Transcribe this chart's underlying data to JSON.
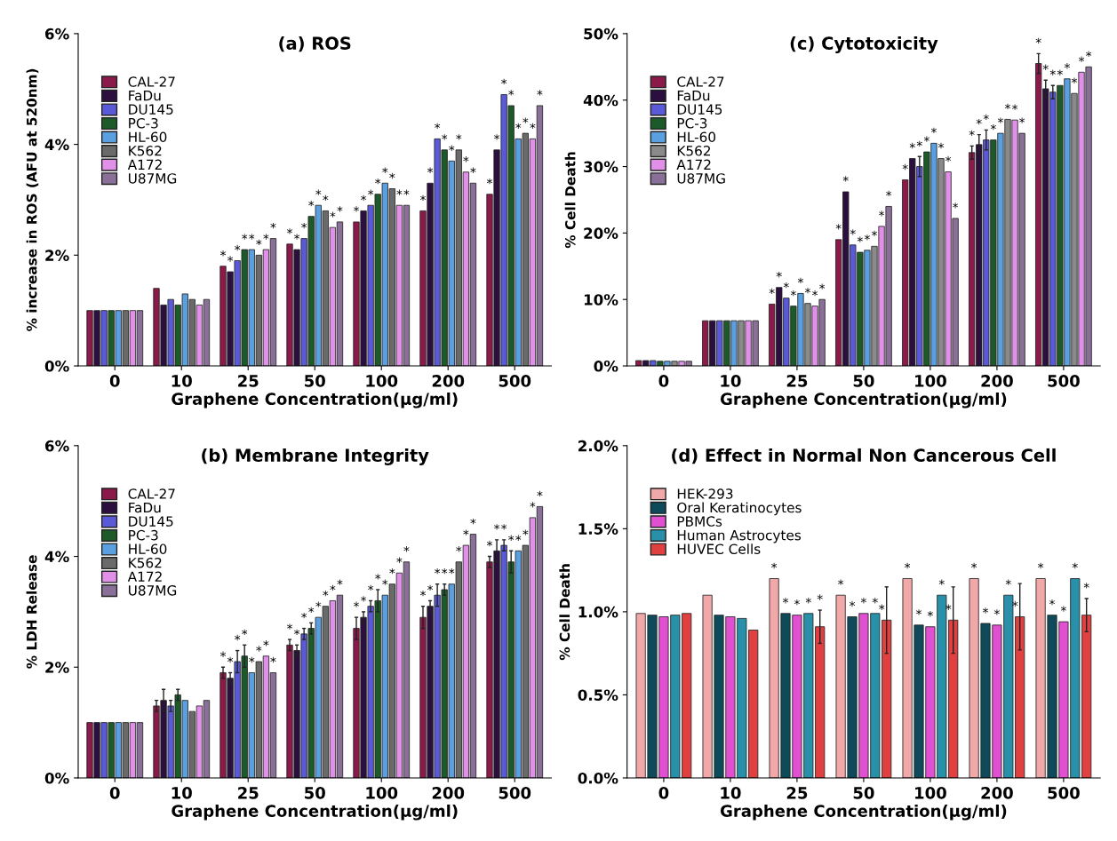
{
  "chart_data": [
    {
      "type": "bar",
      "title": "(a) ROS",
      "xlabel": "Graphene Concentration(μg/ml)",
      "ylabel": "% increase in ROS (AFU at 520nm)",
      "categories": [
        "0",
        "10",
        "25",
        "50",
        "100",
        "200",
        "500"
      ],
      "ylim": [
        0,
        6
      ],
      "yticks": [
        {
          "value": 0,
          "label": "0%"
        },
        {
          "value": 2,
          "label": "2%"
        },
        {
          "value": 4,
          "label": "4%"
        },
        {
          "value": 6,
          "label": "6%"
        }
      ],
      "legend": "top left",
      "grid": false,
      "series": [
        {
          "name": "CAL-27",
          "color": "#8b1a4a",
          "values": [
            1.0,
            1.4,
            1.8,
            2.2,
            2.6,
            2.8,
            3.1
          ],
          "value_labels": [
            null,
            null,
            "*",
            "*",
            "*",
            "*",
            "*"
          ]
        },
        {
          "name": "FaDu",
          "color": "#2a0f3f",
          "values": [
            1.0,
            1.1,
            1.7,
            2.1,
            2.8,
            3.3,
            3.9
          ],
          "value_labels": [
            null,
            null,
            "*",
            "*",
            "*",
            "*",
            "*"
          ]
        },
        {
          "name": "DU145",
          "color": "#5a5ad8",
          "values": [
            1.0,
            1.2,
            1.9,
            2.3,
            2.9,
            4.1,
            4.9
          ],
          "value_labels": [
            null,
            null,
            "*",
            "*",
            "*",
            "*",
            "*"
          ]
        },
        {
          "name": "PC-3",
          "color": "#1d5a2a",
          "values": [
            1.0,
            1.1,
            2.1,
            2.7,
            3.1,
            3.9,
            4.7
          ],
          "value_labels": [
            null,
            null,
            "*",
            "*",
            "*",
            "*",
            "*"
          ]
        },
        {
          "name": "HL-60",
          "color": "#5aa0e0",
          "values": [
            1.0,
            1.3,
            2.1,
            2.9,
            3.3,
            3.7,
            4.1
          ],
          "value_labels": [
            null,
            null,
            "*",
            "*",
            "*",
            "*",
            "*"
          ]
        },
        {
          "name": "K562",
          "color": "#6a6a6a",
          "values": [
            1.0,
            1.2,
            2.0,
            2.8,
            3.2,
            3.9,
            4.2
          ],
          "value_labels": [
            null,
            null,
            "*",
            "*",
            "*",
            "*",
            "*"
          ]
        },
        {
          "name": "A172",
          "color": "#e090e8",
          "values": [
            1.0,
            1.1,
            2.1,
            2.5,
            2.9,
            3.5,
            4.1
          ],
          "value_labels": [
            null,
            null,
            "*",
            "*",
            "*",
            "*",
            "*"
          ]
        },
        {
          "name": "U87MG",
          "color": "#8a7098",
          "values": [
            1.0,
            1.2,
            2.3,
            2.6,
            2.9,
            3.3,
            4.7
          ],
          "value_labels": [
            null,
            null,
            "*",
            "*",
            "*",
            "*",
            "*"
          ]
        }
      ]
    },
    {
      "type": "bar",
      "title": "(c) Cytotoxicity",
      "xlabel": "Graphene Concentration(μg/ml)",
      "ylabel": "% Cell Death",
      "categories": [
        "0",
        "10",
        "25",
        "50",
        "100",
        "200",
        "500"
      ],
      "ylim": [
        0,
        50
      ],
      "yticks": [
        {
          "value": 0,
          "label": "0%"
        },
        {
          "value": 10,
          "label": "10%"
        },
        {
          "value": 20,
          "label": "20%"
        },
        {
          "value": 30,
          "label": "30%"
        },
        {
          "value": 40,
          "label": "40%"
        },
        {
          "value": 50,
          "label": "50%"
        }
      ],
      "legend": "top left",
      "grid": false,
      "series": [
        {
          "name": "CAL-27",
          "color": "#8b1a4a",
          "values": [
            0.8,
            6.8,
            9.3,
            19.0,
            28.0,
            32.1,
            45.5
          ],
          "errors": [
            null,
            null,
            null,
            null,
            null,
            1.0,
            1.5
          ],
          "value_labels": [
            null,
            null,
            "*",
            "*",
            "*",
            "*",
            "*"
          ]
        },
        {
          "name": "FaDu",
          "color": "#2a0f3f",
          "values": [
            0.8,
            6.8,
            11.8,
            26.2,
            31.2,
            33.3,
            41.7
          ],
          "errors": [
            null,
            null,
            null,
            null,
            null,
            1.5,
            1.3
          ],
          "value_labels": [
            null,
            null,
            "*",
            "*",
            "*",
            "*",
            "*"
          ]
        },
        {
          "name": "DU145",
          "color": "#5a5ad8",
          "values": [
            0.8,
            6.8,
            10.2,
            18.2,
            30.0,
            34.0,
            41.2
          ],
          "errors": [
            null,
            null,
            null,
            null,
            1.5,
            1.5,
            1.0
          ],
          "value_labels": [
            null,
            null,
            "*",
            "*",
            "*",
            "*",
            "*"
          ]
        },
        {
          "name": "PC-3",
          "color": "#1d5a2a",
          "values": [
            0.7,
            6.8,
            9.0,
            17.1,
            32.2,
            34.0,
            42.2
          ],
          "value_labels": [
            null,
            null,
            "*",
            "*",
            "*",
            "*",
            "*"
          ]
        },
        {
          "name": "HL-60",
          "color": "#5aa0e0",
          "values": [
            0.7,
            6.8,
            10.9,
            17.4,
            33.5,
            35.0,
            43.2
          ],
          "value_labels": [
            null,
            null,
            "*",
            "*",
            "*",
            "*",
            "*"
          ]
        },
        {
          "name": "K562",
          "color": "#8a8a8a",
          "values": [
            0.7,
            6.8,
            9.4,
            18.0,
            31.2,
            37.1,
            41.0
          ],
          "value_labels": [
            null,
            null,
            "*",
            "*",
            "*",
            "*",
            "*"
          ]
        },
        {
          "name": "A172",
          "color": "#e090e8",
          "values": [
            0.7,
            6.8,
            9.0,
            21.0,
            29.2,
            37.0,
            44.2
          ],
          "value_labels": [
            null,
            null,
            "*",
            "*",
            "*",
            "*",
            "*"
          ]
        },
        {
          "name": "U87MG",
          "color": "#8a7098",
          "values": [
            0.7,
            6.8,
            10.0,
            24.0,
            22.2,
            35.0,
            45.0
          ],
          "value_labels": [
            null,
            null,
            "*",
            "*",
            "*",
            "*",
            "*"
          ]
        }
      ]
    },
    {
      "type": "bar",
      "title": "(b) Membrane Integrity",
      "xlabel": "Graphene Concentration(μg/ml)",
      "ylabel": "% LDH Release",
      "categories": [
        "0",
        "10",
        "25",
        "50",
        "100",
        "200",
        "500"
      ],
      "ylim": [
        0,
        6
      ],
      "yticks": [
        {
          "value": 0,
          "label": "0%"
        },
        {
          "value": 2,
          "label": "2%"
        },
        {
          "value": 4,
          "label": "4%"
        },
        {
          "value": 6,
          "label": "6%"
        }
      ],
      "legend": "top left",
      "grid": false,
      "series": [
        {
          "name": "CAL-27",
          "color": "#8b1a4a",
          "values": [
            1.0,
            1.3,
            1.9,
            2.4,
            2.7,
            2.9,
            3.9
          ],
          "errors": [
            null,
            0.1,
            0.1,
            0.1,
            0.2,
            0.2,
            0.1
          ],
          "value_labels": [
            null,
            null,
            "*",
            "*",
            "*",
            "*",
            "*"
          ]
        },
        {
          "name": "FaDu",
          "color": "#2a0f3f",
          "values": [
            1.0,
            1.4,
            1.8,
            2.3,
            2.9,
            3.1,
            4.1
          ],
          "errors": [
            null,
            0.2,
            0.1,
            0.1,
            0.1,
            0.1,
            0.2
          ],
          "value_labels": [
            null,
            null,
            "*",
            "*",
            "*",
            "*",
            "*"
          ]
        },
        {
          "name": "DU145",
          "color": "#5a5ad8",
          "values": [
            1.0,
            1.3,
            2.1,
            2.6,
            3.1,
            3.3,
            4.2
          ],
          "errors": [
            null,
            0.1,
            0.2,
            0.1,
            0.1,
            0.2,
            0.1
          ],
          "value_labels": [
            null,
            null,
            "*",
            "*",
            "*",
            "*",
            "*"
          ]
        },
        {
          "name": "PC-3",
          "color": "#1d5a2a",
          "values": [
            1.0,
            1.5,
            2.2,
            2.7,
            3.2,
            3.4,
            3.9
          ],
          "errors": [
            null,
            0.1,
            0.2,
            0.1,
            0.2,
            0.1,
            0.2
          ],
          "value_labels": [
            null,
            null,
            "*",
            "*",
            "*",
            "*",
            "*"
          ]
        },
        {
          "name": "HL-60",
          "color": "#5aa0e0",
          "values": [
            1.0,
            1.4,
            1.9,
            2.9,
            3.3,
            3.5,
            4.1
          ],
          "value_labels": [
            null,
            null,
            "*",
            "*",
            "*",
            "*",
            "*"
          ]
        },
        {
          "name": "K562",
          "color": "#6a6a6a",
          "values": [
            1.0,
            1.2,
            2.1,
            3.1,
            3.5,
            3.9,
            4.2
          ],
          "value_labels": [
            null,
            null,
            "*",
            "*",
            "*",
            "*",
            "*"
          ]
        },
        {
          "name": "A172",
          "color": "#e090e8",
          "values": [
            1.0,
            1.3,
            2.2,
            3.2,
            3.7,
            4.2,
            4.7
          ],
          "value_labels": [
            null,
            null,
            "*",
            "*",
            "*",
            "*",
            "*"
          ]
        },
        {
          "name": "U87MG",
          "color": "#8a7098",
          "values": [
            1.0,
            1.4,
            1.9,
            3.3,
            3.9,
            4.4,
            4.9
          ],
          "value_labels": [
            null,
            null,
            "*",
            "*",
            "*",
            "*",
            "*"
          ]
        }
      ]
    },
    {
      "type": "bar",
      "title": "(d) Effect in Normal Non Cancerous Cell",
      "xlabel": "Graphene Concentration(μg/ml)",
      "ylabel": "% Cell Death",
      "categories": [
        "0",
        "10",
        "25",
        "50",
        "100",
        "200",
        "500"
      ],
      "ylim": [
        0,
        2
      ],
      "yticks": [
        {
          "value": 0,
          "label": "0.0%"
        },
        {
          "value": 0.5,
          "label": "0.5%"
        },
        {
          "value": 1,
          "label": "1.0%"
        },
        {
          "value": 1.5,
          "label": "1.5%"
        },
        {
          "value": 2,
          "label": "2.0%"
        }
      ],
      "legend": "top left",
      "grid": false,
      "series": [
        {
          "name": "HEK-293",
          "color": "#f0a8a8",
          "values": [
            0.99,
            1.1,
            1.2,
            1.1,
            1.2,
            1.2,
            1.2
          ],
          "value_labels": [
            null,
            null,
            "*",
            "*",
            "*",
            "*",
            "*"
          ]
        },
        {
          "name": "Oral Keratinocytes",
          "color": "#0f4a5a",
          "values": [
            0.98,
            0.98,
            0.99,
            0.97,
            0.92,
            0.93,
            0.98
          ],
          "value_labels": [
            null,
            null,
            "*",
            "*",
            "*",
            "*",
            "*"
          ]
        },
        {
          "name": "PBMCs",
          "color": "#e050d0",
          "values": [
            0.97,
            0.97,
            0.98,
            0.99,
            0.91,
            0.92,
            0.94
          ],
          "value_labels": [
            null,
            null,
            "*",
            "*",
            "*",
            "*",
            "*"
          ]
        },
        {
          "name": "Human Astrocytes",
          "color": "#2890a8",
          "values": [
            0.98,
            0.96,
            0.99,
            0.99,
            1.1,
            1.1,
            1.2
          ],
          "value_labels": [
            null,
            null,
            "*",
            "*",
            "*",
            "*",
            "*"
          ]
        },
        {
          "name": "HUVEC Cells",
          "color": "#e04040",
          "values": [
            0.99,
            0.89,
            0.91,
            0.95,
            0.95,
            0.97,
            0.98
          ],
          "errors": [
            null,
            null,
            0.1,
            0.2,
            0.2,
            0.2,
            0.1
          ],
          "value_labels": [
            null,
            null,
            "*",
            "*",
            "*",
            "*",
            "*"
          ]
        }
      ]
    }
  ]
}
